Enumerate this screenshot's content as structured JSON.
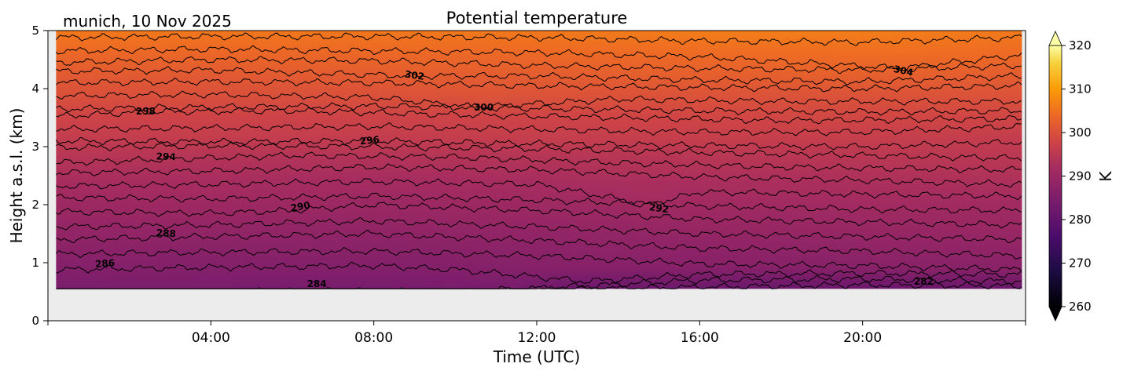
{
  "chart_data": {
    "type": "heatmap",
    "title": "Potential temperature",
    "subtitle": "munich, 10 Nov 2025",
    "xlabel": "Time (UTC)",
    "ylabel": "Height a.s.l. (km)",
    "x_units": "hours",
    "xlim": [
      0,
      24
    ],
    "ylim": [
      0,
      5
    ],
    "x_ticks": [
      {
        "value": 4,
        "label": "04:00"
      },
      {
        "value": 8,
        "label": "08:00"
      },
      {
        "value": 12,
        "label": "12:00"
      },
      {
        "value": 16,
        "label": "16:00"
      },
      {
        "value": 20,
        "label": "20:00"
      }
    ],
    "y_ticks": [
      {
        "value": 0,
        "label": "0"
      },
      {
        "value": 1,
        "label": "1"
      },
      {
        "value": 2,
        "label": "2"
      },
      {
        "value": 3,
        "label": "3"
      },
      {
        "value": 4,
        "label": "4"
      },
      {
        "value": 5,
        "label": "5"
      }
    ],
    "data_extent": {
      "x": [
        0.2,
        23.9
      ],
      "y": [
        0.55,
        5.0
      ]
    },
    "colorbar": {
      "label": "K",
      "range": [
        260,
        320
      ],
      "extend": "both",
      "ticks": [
        {
          "value": 260,
          "label": "260"
        },
        {
          "value": 270,
          "label": "270"
        },
        {
          "value": 280,
          "label": "280"
        },
        {
          "value": 290,
          "label": "290"
        },
        {
          "value": 300,
          "label": "300"
        },
        {
          "value": 310,
          "label": "310"
        },
        {
          "value": 320,
          "label": "320"
        }
      ],
      "colormap_stops": [
        {
          "value": 260,
          "color": "#000004"
        },
        {
          "value": 268,
          "color": "#1b0c41"
        },
        {
          "value": 276,
          "color": "#4a0c6b"
        },
        {
          "value": 284,
          "color": "#781c6d"
        },
        {
          "value": 292,
          "color": "#a52c60"
        },
        {
          "value": 298,
          "color": "#cf4446"
        },
        {
          "value": 304,
          "color": "#ed6925"
        },
        {
          "value": 310,
          "color": "#fb9b06"
        },
        {
          "value": 316,
          "color": "#f7d13d"
        },
        {
          "value": 320,
          "color": "#fcffa4"
        }
      ]
    },
    "contours": [
      {
        "level": 282,
        "heights": [
          [
            0.2,
            0.3
          ],
          [
            13.2,
            0.55
          ],
          [
            16,
            0.58
          ],
          [
            20,
            0.62
          ],
          [
            23.9,
            0.6
          ]
        ]
      },
      {
        "level": 284,
        "heights": [
          [
            0.2,
            0.44
          ],
          [
            6.5,
            0.52
          ],
          [
            10,
            0.5
          ],
          [
            13.2,
            0.6
          ],
          [
            16,
            0.7
          ],
          [
            20,
            0.72
          ],
          [
            23.9,
            0.68
          ]
        ]
      },
      {
        "level": 286,
        "heights": [
          [
            0.2,
            0.88
          ],
          [
            4,
            0.92
          ],
          [
            8,
            0.95
          ],
          [
            10,
            0.88
          ],
          [
            13.2,
            0.68
          ],
          [
            16,
            0.8
          ],
          [
            20,
            0.82
          ],
          [
            23.9,
            0.8
          ]
        ]
      },
      {
        "level": 287,
        "heights": [
          [
            0.2,
            1.15
          ],
          [
            4,
            1.18
          ],
          [
            8,
            1.2
          ],
          [
            12,
            1.12
          ],
          [
            16,
            0.98
          ],
          [
            20,
            0.95
          ],
          [
            23.9,
            0.88
          ]
        ]
      },
      {
        "level": 288,
        "heights": [
          [
            0.2,
            1.4
          ],
          [
            4,
            1.45
          ],
          [
            8,
            1.5
          ],
          [
            12,
            1.38
          ],
          [
            16,
            1.25
          ],
          [
            20,
            1.2
          ],
          [
            23.9,
            1.12
          ]
        ]
      },
      {
        "level": 289,
        "heights": [
          [
            0.2,
            1.62
          ],
          [
            4,
            1.65
          ],
          [
            8,
            1.72
          ],
          [
            12,
            1.62
          ],
          [
            16,
            1.5
          ],
          [
            20,
            1.45
          ],
          [
            23.9,
            1.4
          ]
        ]
      },
      {
        "level": 290,
        "heights": [
          [
            0.2,
            1.88
          ],
          [
            4,
            1.85
          ],
          [
            6,
            1.9
          ],
          [
            8,
            2.0
          ],
          [
            12,
            1.9
          ],
          [
            16,
            1.75
          ],
          [
            20,
            1.7
          ],
          [
            23.9,
            1.65
          ]
        ]
      },
      {
        "level": 291,
        "heights": [
          [
            0.2,
            2.12
          ],
          [
            4,
            2.1
          ],
          [
            8,
            2.15
          ],
          [
            12,
            2.08
          ],
          [
            16,
            1.98
          ],
          [
            20,
            1.92
          ],
          [
            23.9,
            1.9
          ]
        ]
      },
      {
        "level": 292,
        "heights": [
          [
            0.2,
            2.32
          ],
          [
            4,
            2.35
          ],
          [
            8,
            2.4
          ],
          [
            12,
            2.35
          ],
          [
            14.8,
            2.0
          ],
          [
            16,
            2.22
          ],
          [
            20,
            2.18
          ],
          [
            23.9,
            2.15
          ]
        ]
      },
      {
        "level": 293,
        "heights": [
          [
            0.2,
            2.55
          ],
          [
            4,
            2.58
          ],
          [
            8,
            2.65
          ],
          [
            12,
            2.6
          ],
          [
            16,
            2.48
          ],
          [
            20,
            2.42
          ],
          [
            23.9,
            2.35
          ]
        ]
      },
      {
        "level": 294,
        "heights": [
          [
            0.2,
            2.72
          ],
          [
            2.8,
            2.78
          ],
          [
            6,
            2.85
          ],
          [
            10,
            2.82
          ],
          [
            14,
            2.72
          ],
          [
            18,
            2.65
          ],
          [
            23.9,
            2.6
          ]
        ]
      },
      {
        "level": 295,
        "heights": [
          [
            0.2,
            2.98
          ],
          [
            4,
            3.02
          ],
          [
            8,
            3.0
          ],
          [
            12,
            2.96
          ],
          [
            16,
            2.9
          ],
          [
            20,
            2.85
          ],
          [
            23.9,
            2.8
          ]
        ]
      },
      {
        "level": 296,
        "heights": [
          [
            0.2,
            3.1
          ],
          [
            4,
            3.08
          ],
          [
            7.8,
            3.1
          ],
          [
            12,
            3.05
          ],
          [
            16,
            3.02
          ],
          [
            20,
            3.0
          ],
          [
            23.9,
            3.08
          ]
        ]
      },
      {
        "level": 297,
        "heights": [
          [
            0.2,
            3.3
          ],
          [
            4,
            3.32
          ],
          [
            8,
            3.35
          ],
          [
            12,
            3.3
          ],
          [
            16,
            3.25
          ],
          [
            20,
            3.25
          ],
          [
            23.9,
            3.35
          ]
        ]
      },
      {
        "level": 298,
        "heights": [
          [
            0.2,
            3.52
          ],
          [
            2.4,
            3.6
          ],
          [
            6,
            3.62
          ],
          [
            10,
            3.55
          ],
          [
            14,
            3.5
          ],
          [
            18,
            3.45
          ],
          [
            23.9,
            3.48
          ]
        ]
      },
      {
        "level": 299,
        "heights": [
          [
            0.2,
            3.65
          ],
          [
            4,
            3.68
          ],
          [
            8,
            3.7
          ],
          [
            12,
            3.66
          ],
          [
            16,
            3.62
          ],
          [
            20,
            3.6
          ],
          [
            23.9,
            3.62
          ]
        ]
      },
      {
        "level": 300,
        "heights": [
          [
            0.2,
            3.88
          ],
          [
            4,
            3.9
          ],
          [
            8,
            3.85
          ],
          [
            10.5,
            3.68
          ],
          [
            14,
            3.82
          ],
          [
            18,
            3.78
          ],
          [
            23.9,
            3.78
          ]
        ]
      },
      {
        "level": 301,
        "heights": [
          [
            0.2,
            4.1
          ],
          [
            4,
            4.12
          ],
          [
            8,
            4.1
          ],
          [
            12,
            4.05
          ],
          [
            16,
            4.02
          ],
          [
            20,
            4.0
          ],
          [
            23.9,
            4.05
          ]
        ]
      },
      {
        "level": 302,
        "heights": [
          [
            0.2,
            4.3
          ],
          [
            4,
            4.32
          ],
          [
            8.9,
            4.22
          ],
          [
            12,
            4.22
          ],
          [
            16,
            4.15
          ],
          [
            20,
            4.12
          ],
          [
            23.9,
            4.22
          ]
        ]
      },
      {
        "level": 303,
        "heights": [
          [
            0.2,
            4.45
          ],
          [
            4,
            4.5
          ],
          [
            8,
            4.48
          ],
          [
            12,
            4.4
          ],
          [
            16,
            4.35
          ],
          [
            20,
            4.32
          ],
          [
            23.9,
            4.4
          ]
        ]
      },
      {
        "level": 304,
        "heights": [
          [
            0.2,
            4.65
          ],
          [
            4,
            4.68
          ],
          [
            8,
            4.65
          ],
          [
            12,
            4.62
          ],
          [
            16,
            4.55
          ],
          [
            20.9,
            4.35
          ],
          [
            23.9,
            4.58
          ]
        ]
      },
      {
        "level": 305,
        "heights": [
          [
            0.2,
            4.88
          ],
          [
            4,
            4.9
          ],
          [
            8,
            4.9
          ],
          [
            12,
            4.88
          ],
          [
            16,
            4.82
          ],
          [
            20,
            4.8
          ],
          [
            23.9,
            4.88
          ]
        ]
      }
    ],
    "contour_labels": [
      {
        "text": "282",
        "x": 21.5,
        "y": 0.67,
        "angle": 0
      },
      {
        "text": "284",
        "x": 6.6,
        "y": 0.63,
        "angle": 0
      },
      {
        "text": "286",
        "x": 1.4,
        "y": 0.98,
        "angle": -4
      },
      {
        "text": "288",
        "x": 2.9,
        "y": 1.5,
        "angle": 3
      },
      {
        "text": "290",
        "x": 6.2,
        "y": 1.96,
        "angle": -10
      },
      {
        "text": "292",
        "x": 15.0,
        "y": 1.93,
        "angle": 8
      },
      {
        "text": "294",
        "x": 2.9,
        "y": 2.82,
        "angle": 2
      },
      {
        "text": "296",
        "x": 7.9,
        "y": 3.1,
        "angle": -6
      },
      {
        "text": "298",
        "x": 2.4,
        "y": 3.6,
        "angle": 0
      },
      {
        "text": "300",
        "x": 10.7,
        "y": 3.67,
        "angle": 0
      },
      {
        "text": "302",
        "x": 9.0,
        "y": 4.22,
        "angle": 8
      },
      {
        "text": "304",
        "x": 21.0,
        "y": 4.3,
        "angle": 12
      }
    ]
  }
}
